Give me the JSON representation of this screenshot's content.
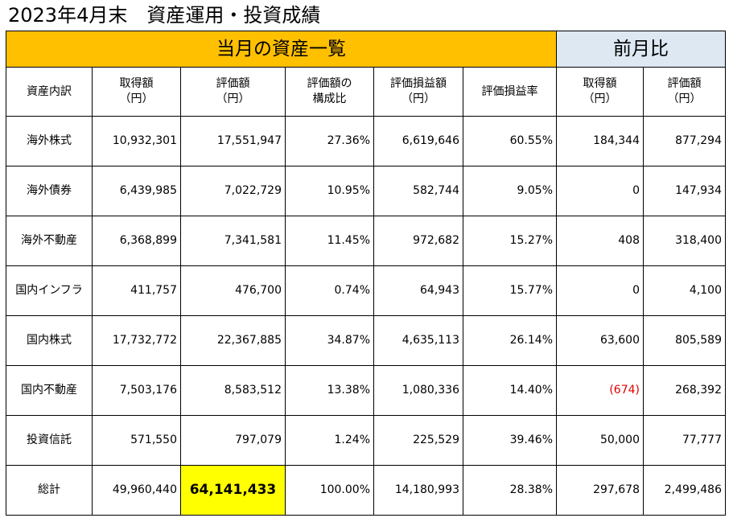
{
  "title": "2023年4月末　資産運用・投資成績",
  "band": {
    "main": "当月の資産一覧",
    "prev": "前月比"
  },
  "headers": [
    {
      "l1": "資産内訳",
      "l2": ""
    },
    {
      "l1": "取得額",
      "l2": "（円）"
    },
    {
      "l1": "評価額",
      "l2": "（円）"
    },
    {
      "l1": "評価額の",
      "l2": "構成比"
    },
    {
      "l1": "評価損益額",
      "l2": "（円）"
    },
    {
      "l1": "評価損益率",
      "l2": ""
    },
    {
      "l1": "取得額",
      "l2": "（円）"
    },
    {
      "l1": "評価額",
      "l2": "（円）"
    }
  ],
  "rows": [
    {
      "name": "海外株式",
      "cost": "10,932,301",
      "value": "17,551,947",
      "share": "27.36%",
      "pl": "6,619,646",
      "pl_rate": "60.55%",
      "d_cost": "184,344",
      "d_value": "877,294"
    },
    {
      "name": "海外債券",
      "cost": "6,439,985",
      "value": "7,022,729",
      "share": "10.95%",
      "pl": "582,744",
      "pl_rate": "9.05%",
      "d_cost": "0",
      "d_value": "147,934"
    },
    {
      "name": "海外不動産",
      "cost": "6,368,899",
      "value": "7,341,581",
      "share": "11.45%",
      "pl": "972,682",
      "pl_rate": "15.27%",
      "d_cost": "408",
      "d_value": "318,400"
    },
    {
      "name": "国内インフラ",
      "cost": "411,757",
      "value": "476,700",
      "share": "0.74%",
      "pl": "64,943",
      "pl_rate": "15.77%",
      "d_cost": "0",
      "d_value": "4,100"
    },
    {
      "name": "国内株式",
      "cost": "17,732,772",
      "value": "22,367,885",
      "share": "34.87%",
      "pl": "4,635,113",
      "pl_rate": "26.14%",
      "d_cost": "63,600",
      "d_value": "805,589"
    },
    {
      "name": "国内不動産",
      "cost": "7,503,176",
      "value": "8,583,512",
      "share": "13.38%",
      "pl": "1,080,336",
      "pl_rate": "14.40%",
      "d_cost": "(674)",
      "d_value": "268,392"
    },
    {
      "name": "投資信託",
      "cost": "571,550",
      "value": "797,079",
      "share": "1.24%",
      "pl": "225,529",
      "pl_rate": "39.46%",
      "d_cost": "50,000",
      "d_value": "77,777"
    },
    {
      "name": "総計",
      "cost": "49,960,440",
      "value": "64,141,433",
      "share": "100.00%",
      "pl": "14,180,993",
      "pl_rate": "28.38%",
      "d_cost": "297,678",
      "d_value": "2,499,486"
    }
  ],
  "colors": {
    "band_main": "#ffc000",
    "band_prev": "#dde8f3",
    "highlight": "#ffff00",
    "negative": "#e00000"
  }
}
